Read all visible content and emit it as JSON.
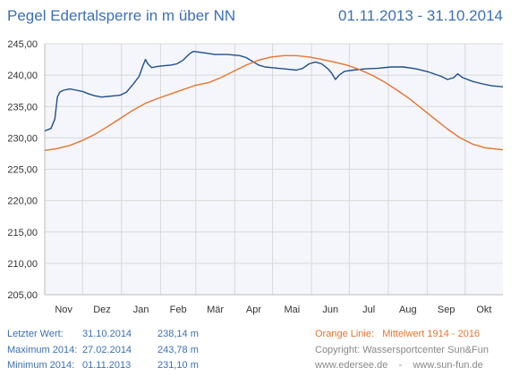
{
  "header": {
    "title": "Pegel Edertalsperre in m über NN",
    "date_range": "01.11.2013 - 31.10.2014"
  },
  "chart_data": {
    "type": "line",
    "title": "Pegel Edertalsperre in m über NN",
    "xlabel": "",
    "ylabel": "",
    "ylim": [
      205,
      245
    ],
    "yticks": [
      "245,00",
      "240,00",
      "235,00",
      "230,00",
      "225,00",
      "220,00",
      "215,00",
      "210,00",
      "205,00"
    ],
    "month_labels": [
      "Nov",
      "Dez",
      "Jan",
      "Feb",
      "Mär",
      "Apr",
      "Mai",
      "Jun",
      "Jul",
      "Aug",
      "Sep",
      "Okt"
    ],
    "x_unit": "day of period (0 = 01.11.2013)",
    "series": [
      {
        "name": "",
        "color": "#1f4e8c",
        "points": [
          [
            0,
            231.1
          ],
          [
            5,
            231.5
          ],
          [
            8,
            233
          ],
          [
            10,
            236.5
          ],
          [
            12,
            237.3
          ],
          [
            15,
            237.6
          ],
          [
            20,
            237.8
          ],
          [
            25,
            237.6
          ],
          [
            30,
            237.4
          ],
          [
            35,
            237.0
          ],
          [
            40,
            236.7
          ],
          [
            45,
            236.5
          ],
          [
            50,
            236.6
          ],
          [
            55,
            236.7
          ],
          [
            60,
            236.8
          ],
          [
            65,
            237.3
          ],
          [
            70,
            238.5
          ],
          [
            75,
            239.8
          ],
          [
            78,
            241.5
          ],
          [
            80,
            242.5
          ],
          [
            82,
            241.8
          ],
          [
            85,
            241.2
          ],
          [
            90,
            241.4
          ],
          [
            95,
            241.5
          ],
          [
            100,
            241.6
          ],
          [
            105,
            241.8
          ],
          [
            110,
            242.4
          ],
          [
            115,
            243.4
          ],
          [
            118,
            243.78
          ],
          [
            125,
            243.6
          ],
          [
            135,
            243.3
          ],
          [
            145,
            243.3
          ],
          [
            155,
            243.1
          ],
          [
            160,
            242.8
          ],
          [
            165,
            242.2
          ],
          [
            170,
            241.6
          ],
          [
            175,
            241.3
          ],
          [
            180,
            241.2
          ],
          [
            185,
            241.1
          ],
          [
            190,
            241.0
          ],
          [
            195,
            240.9
          ],
          [
            200,
            240.8
          ],
          [
            205,
            241.1
          ],
          [
            210,
            241.8
          ],
          [
            215,
            242.1
          ],
          [
            220,
            241.8
          ],
          [
            225,
            241.0
          ],
          [
            228,
            240.3
          ],
          [
            231,
            239.3
          ],
          [
            234,
            240.0
          ],
          [
            238,
            240.6
          ],
          [
            245,
            240.8
          ],
          [
            255,
            241.0
          ],
          [
            265,
            241.1
          ],
          [
            275,
            241.3
          ],
          [
            285,
            241.3
          ],
          [
            295,
            241.0
          ],
          [
            305,
            240.5
          ],
          [
            315,
            239.8
          ],
          [
            320,
            239.3
          ],
          [
            325,
            239.6
          ],
          [
            328,
            240.2
          ],
          [
            332,
            239.6
          ],
          [
            340,
            239.0
          ],
          [
            348,
            238.6
          ],
          [
            355,
            238.3
          ],
          [
            364,
            238.14
          ]
        ]
      },
      {
        "name": "Mittelwert 1914 - 2016",
        "color": "#e8732d",
        "points": [
          [
            0,
            228.0
          ],
          [
            10,
            228.3
          ],
          [
            20,
            228.8
          ],
          [
            30,
            229.6
          ],
          [
            40,
            230.6
          ],
          [
            50,
            231.8
          ],
          [
            60,
            233.1
          ],
          [
            70,
            234.4
          ],
          [
            80,
            235.5
          ],
          [
            90,
            236.3
          ],
          [
            100,
            237.0
          ],
          [
            110,
            237.7
          ],
          [
            120,
            238.4
          ],
          [
            130,
            238.8
          ],
          [
            140,
            239.6
          ],
          [
            150,
            240.6
          ],
          [
            160,
            241.6
          ],
          [
            170,
            242.4
          ],
          [
            180,
            242.9
          ],
          [
            190,
            243.1
          ],
          [
            200,
            243.1
          ],
          [
            210,
            242.9
          ],
          [
            220,
            242.5
          ],
          [
            230,
            242.1
          ],
          [
            240,
            241.6
          ],
          [
            250,
            240.9
          ],
          [
            260,
            240.0
          ],
          [
            270,
            238.9
          ],
          [
            280,
            237.6
          ],
          [
            290,
            236.2
          ],
          [
            300,
            234.6
          ],
          [
            310,
            233.0
          ],
          [
            320,
            231.4
          ],
          [
            330,
            230.0
          ],
          [
            340,
            229.0
          ],
          [
            350,
            228.4
          ],
          [
            364,
            228.1
          ]
        ]
      }
    ],
    "grid": true
  },
  "footer": {
    "letzter_label": "Letzter Wert:",
    "letzter_date": "31.10.2014",
    "letzter_value": "238,14 m",
    "max_label": "Maximum 2014:",
    "max_date": "27.02.2014",
    "max_value": "243,78 m",
    "min_label": "Minimum  2014:",
    "min_date": "01.11.2013",
    "min_value": "231,10 m",
    "orange_label": "Orange Linie:",
    "mittelwert_label": "Mittelwert   1914 - 2016",
    "copyright": "Copyright: Wassersportcenter Sun&Fun",
    "url1": "www.edersee.de",
    "dash": "-",
    "url2": "www.sun-fun.de"
  },
  "colors": {
    "title": "#3b6fb6",
    "plot_bg": "#f4f6fb",
    "grid": "#d8d8d8",
    "series_blue": "#1f4e8c",
    "series_orange": "#e8732d"
  }
}
